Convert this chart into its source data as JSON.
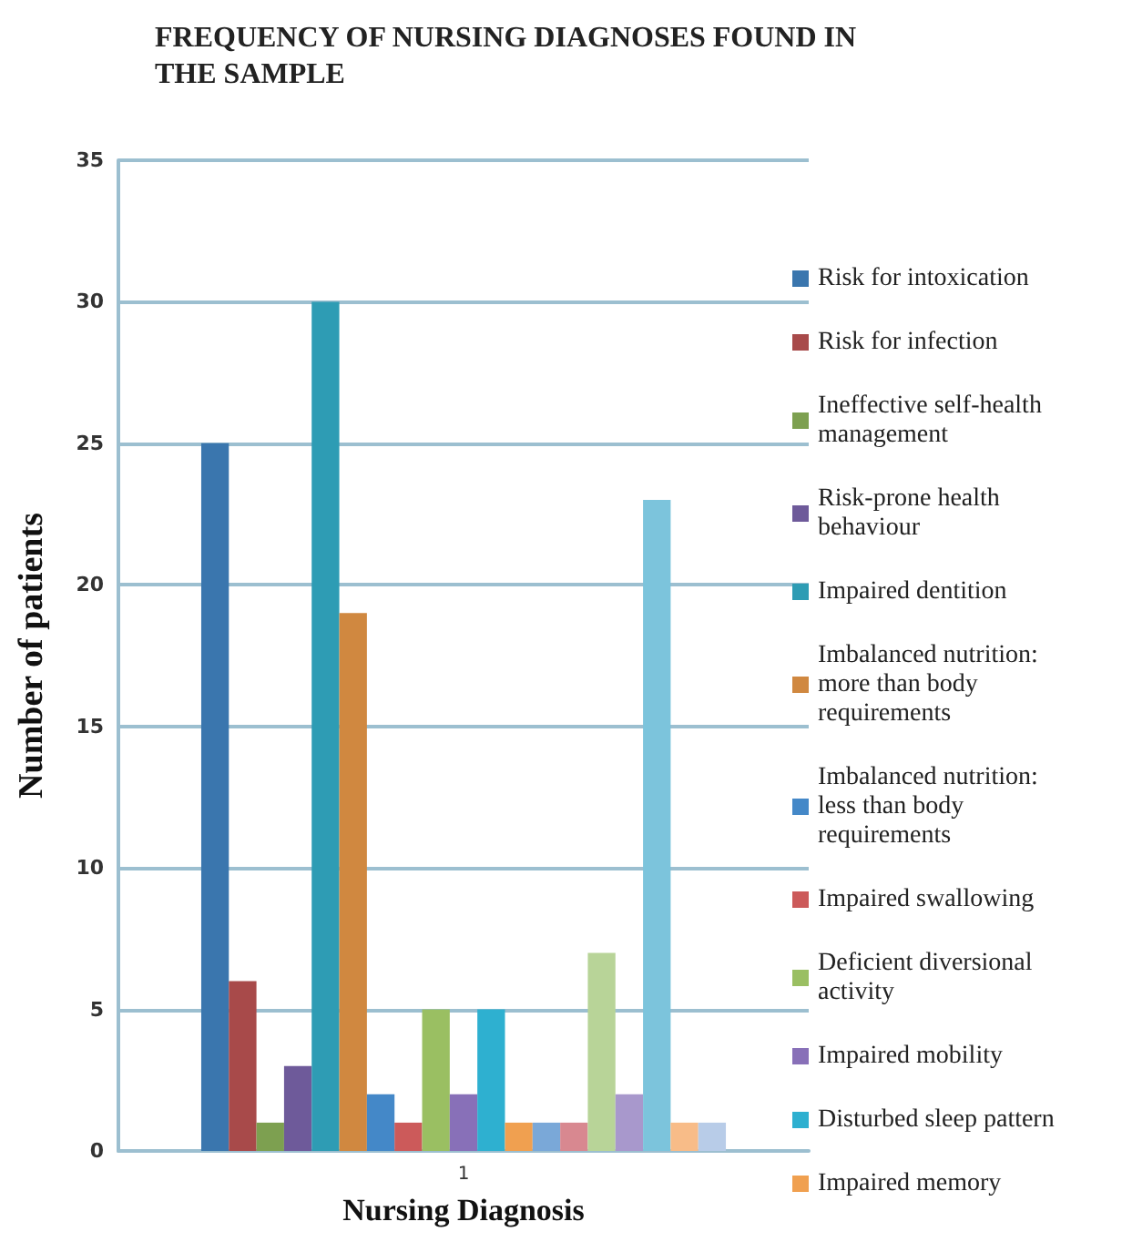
{
  "chart_data": {
    "type": "bar",
    "title": "FREQUENCY OF NURSING DIAGNOSES FOUND IN THE SAMPLE",
    "xlabel": "Nursing Diagnosis",
    "ylabel": "Number of patients",
    "categories": [
      "1"
    ],
    "series": [
      {
        "name": "Risk for intoxication",
        "color": "#3a76ae",
        "values": [
          25
        ]
      },
      {
        "name": "Risk for infection",
        "color": "#a84a4a",
        "values": [
          6
        ]
      },
      {
        "name": "Ineffective self-health management",
        "color": "#7da050",
        "values": [
          1
        ]
      },
      {
        "name": "Risk-prone health behaviour",
        "color": "#6e5a9a",
        "values": [
          3
        ]
      },
      {
        "name": "Impaired dentition",
        "color": "#2e9cb4",
        "values": [
          30
        ]
      },
      {
        "name": "Imbalanced nutrition: more than body requirements",
        "color": "#d08840",
        "values": [
          19
        ]
      },
      {
        "name": "Imbalanced nutrition: less than body requirements",
        "color": "#4488c8",
        "values": [
          2
        ]
      },
      {
        "name": "Impaired swallowing",
        "color": "#cc5a5a",
        "values": [
          1
        ]
      },
      {
        "name": "Deficient diversional activity",
        "color": "#9abf62",
        "values": [
          5
        ]
      },
      {
        "name": "Impaired mobility",
        "color": "#8870b8",
        "values": [
          2
        ]
      },
      {
        "name": "Disturbed sleep pattern",
        "color": "#2eb0d0",
        "values": [
          5
        ]
      },
      {
        "name": "Impaired memory",
        "color": "#f0a050",
        "values": [
          1
        ]
      },
      {
        "color": "#7aa8d8",
        "values": [
          1
        ]
      },
      {
        "color": "#d88890",
        "values": [
          1
        ]
      },
      {
        "color": "#b8d498",
        "values": [
          7
        ]
      },
      {
        "color": "#a898cc",
        "values": [
          2
        ]
      },
      {
        "color": "#7cc4dc",
        "values": [
          23
        ]
      },
      {
        "color": "#f8bc88",
        "values": [
          1
        ]
      },
      {
        "color": "#b8cce8",
        "values": [
          1
        ]
      }
    ],
    "ylim": [
      0,
      35
    ],
    "yticks": [
      0,
      5,
      10,
      15,
      20,
      25,
      30,
      35
    ],
    "grid": "y",
    "legend": "right"
  }
}
